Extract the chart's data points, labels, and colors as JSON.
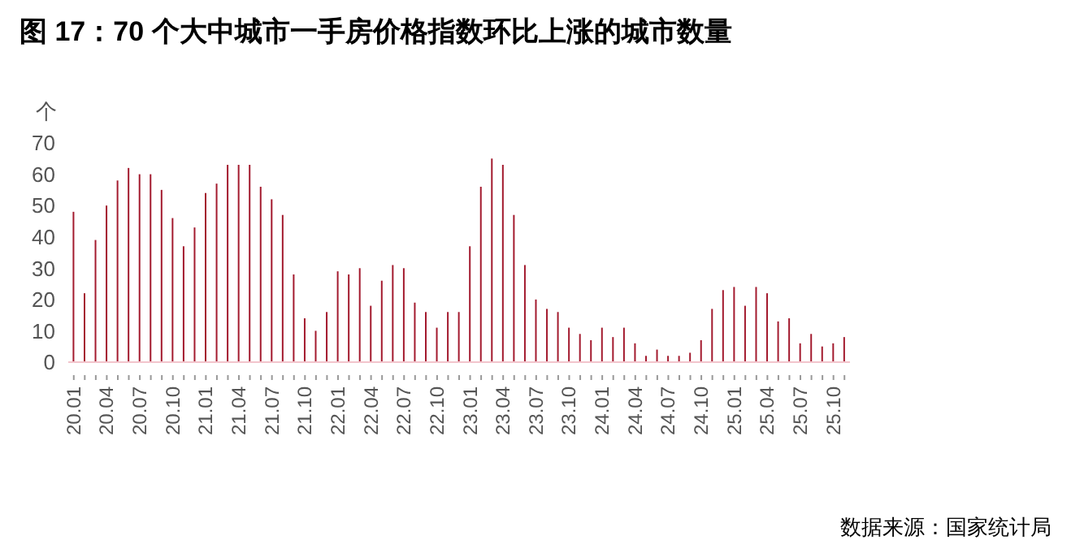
{
  "chart_data": {
    "type": "bar",
    "title": "图 17：70 个大中城市一手房价格指数环比上涨的城市数量",
    "ylabel": "个",
    "categories": [
      "20.01",
      null,
      null,
      "20.04",
      null,
      null,
      "20.07",
      null,
      null,
      "20.10",
      null,
      null,
      "21.01",
      null,
      null,
      "21.04",
      null,
      null,
      "21.07",
      null,
      null,
      "21.10",
      null,
      null,
      "22.01",
      null,
      null,
      "22.04",
      null,
      null,
      "22.07",
      null,
      null,
      "22.10",
      null,
      null,
      "23.01",
      null,
      null,
      "23.04",
      null,
      null,
      "23.07",
      null,
      null,
      "23.10",
      null,
      null,
      "24.01",
      null,
      null,
      "24.04",
      null,
      null,
      "24.07",
      null,
      null,
      "24.10",
      null,
      null,
      "25.01",
      null,
      null,
      "25.04",
      null,
      null,
      "25.07",
      null,
      null,
      "25.10",
      null
    ],
    "values": [
      48,
      22,
      39,
      50,
      58,
      62,
      60,
      60,
      55,
      46,
      37,
      43,
      54,
      57,
      63,
      63,
      63,
      56,
      52,
      47,
      28,
      14,
      10,
      16,
      29,
      28,
      30,
      18,
      26,
      31,
      30,
      19,
      16,
      11,
      16,
      16,
      37,
      56,
      65,
      63,
      47,
      31,
      20,
      17,
      16,
      11,
      9,
      7,
      11,
      8,
      11,
      6,
      2,
      4,
      2,
      2,
      3,
      7,
      17,
      23,
      24,
      18,
      24,
      22,
      13,
      14,
      6,
      9,
      5,
      6,
      8
    ],
    "color": "#a31a2e",
    "ylim": [
      0,
      70
    ],
    "yticks": [
      0,
      10,
      20,
      30,
      40,
      50,
      60,
      70
    ],
    "grid": false,
    "legend": false,
    "annotations": [
      "数据来源：国家统计局"
    ]
  }
}
